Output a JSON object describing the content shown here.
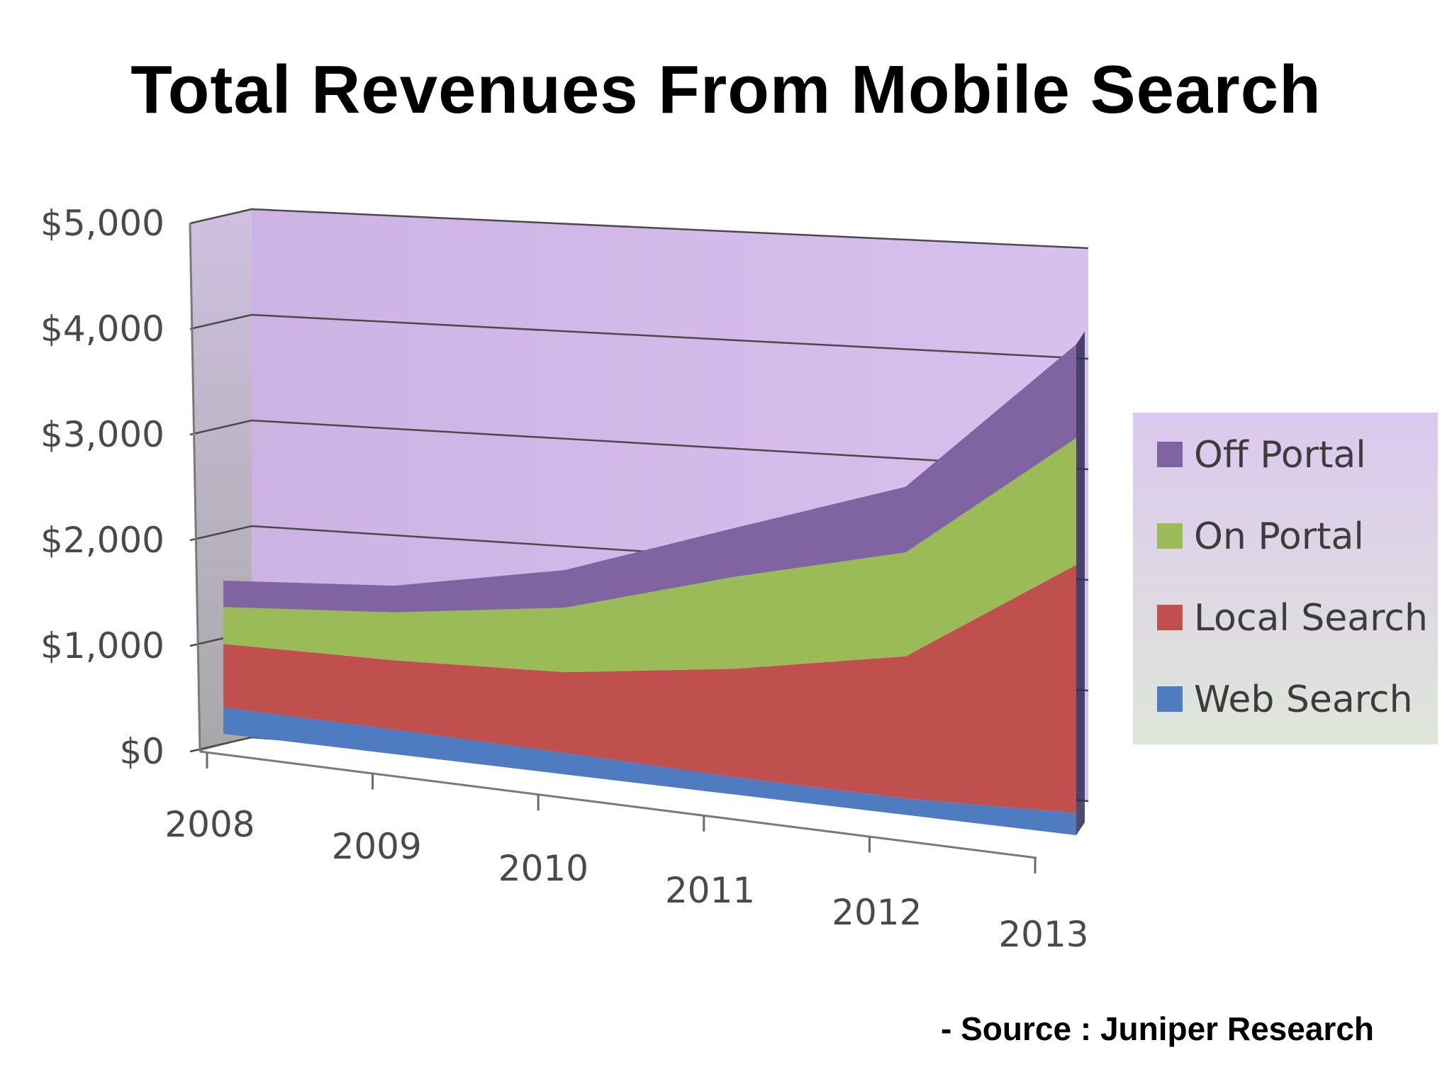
{
  "title": "Total Revenues From Mobile Search",
  "source": "- Source : Juniper Research",
  "chart_data": {
    "type": "area",
    "stacked": true,
    "three_d": true,
    "categories": [
      "2008",
      "2009",
      "2010",
      "2011",
      "2012",
      "2013"
    ],
    "y_tick_labels": [
      "$0",
      "$1,000",
      "$2,000",
      "$3,000",
      "$4,000",
      "$5,000"
    ],
    "ylim": [
      0,
      5000
    ],
    "grid": true,
    "legend_position": "right",
    "series": [
      {
        "name": "Web Search",
        "color": "#4f7bc1",
        "values": [
          250,
          230,
          200,
          160,
          150,
          200
        ]
      },
      {
        "name": "Local Search",
        "color": "#c0504d",
        "values": [
          600,
          650,
          750,
          1000,
          1300,
          2250
        ]
      },
      {
        "name": "On Portal",
        "color": "#9bbb59",
        "values": [
          350,
          450,
          600,
          850,
          950,
          1150
        ]
      },
      {
        "name": "Off Portal",
        "color": "#8064a2",
        "values": [
          250,
          250,
          350,
          450,
          600,
          850
        ]
      }
    ],
    "legend_order": [
      "Off Portal",
      "On Portal",
      "Local Search",
      "Web Search"
    ],
    "colors": {
      "back_wall": "#d4b8ea",
      "side_wall": "#c4c4c4",
      "legend_bg": "#ddd3ea",
      "floor": "#ffffff"
    }
  }
}
